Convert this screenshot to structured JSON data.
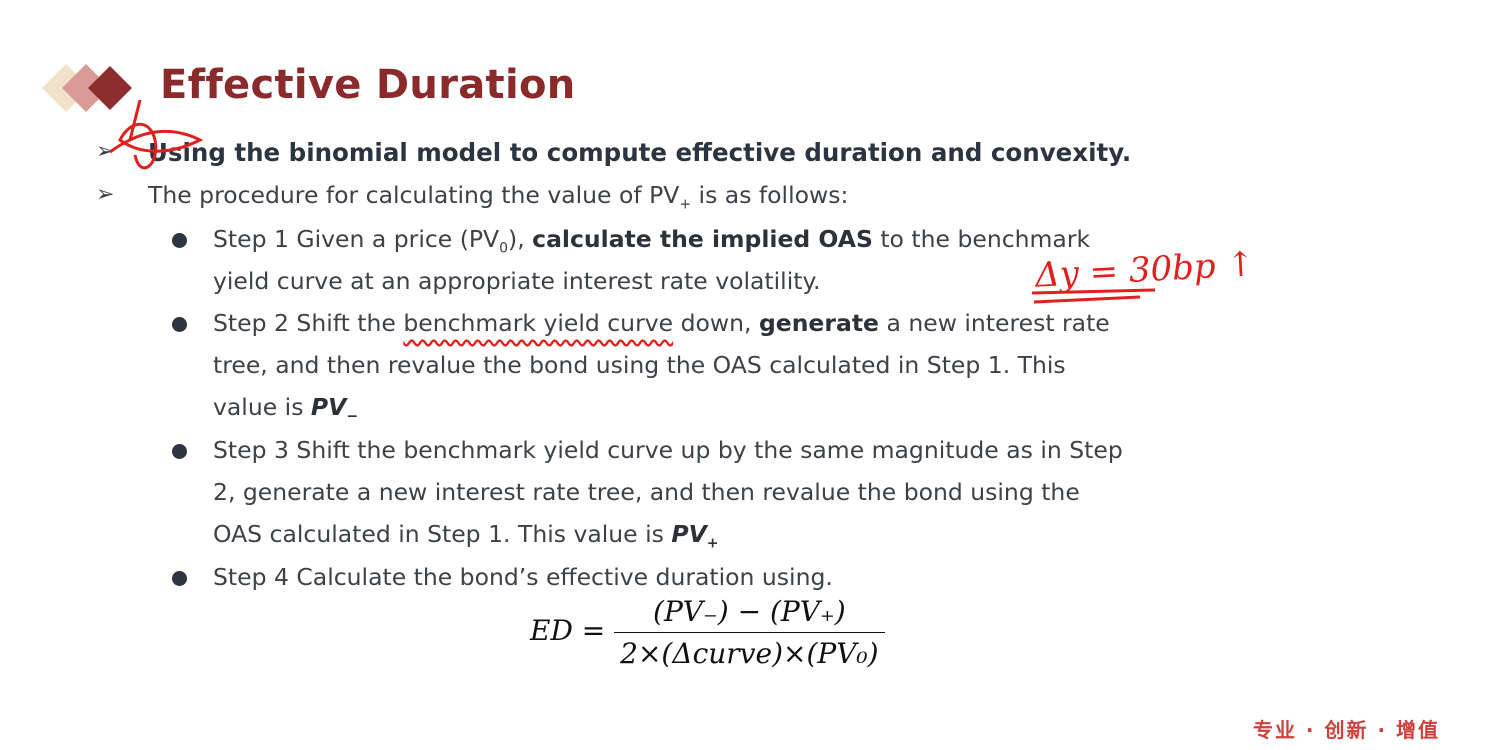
{
  "title": "Effective Duration",
  "bullets": {
    "b1": "Using the binomial model to compute effective duration and convexity.",
    "b2_pre": "The procedure for calculating the value of PV",
    "b2_sub": "+",
    "b2_post": " is as follows:"
  },
  "steps": {
    "s1_a": "Step 1 Given a price (PV",
    "s1_sub": "0",
    "s1_b": "), ",
    "s1_bold": "calculate the implied OAS",
    "s1_c": " to the benchmark",
    "s1_line2": "yield curve at an appropriate interest rate volatility.",
    "s2_a": "Step 2 Shift the ",
    "s2_underlined": "benchmark yield curve",
    "s2_b": " down, ",
    "s2_bold": "generate",
    "s2_c": " a new interest rate",
    "s2_line2": "tree, and then revalue the bond using the OAS calculated in Step 1. This",
    "s2_line3": "value is ",
    "s2_value": "PV",
    "s2_value_sub": "−",
    "s3_line1": "Step 3 Shift the benchmark yield curve up by the same magnitude as in Step",
    "s3_line2": "2, generate a new interest rate tree, and then revalue the bond using the",
    "s3_line3": "OAS calculated in Step 1. This value is ",
    "s3_value": "PV",
    "s3_value_sub": "+",
    "s4": "Step 4 Calculate the bond’s effective duration using."
  },
  "formula": {
    "lhs": "ED =",
    "numerator": "(PV₋) − (PV₊)",
    "denominator": "2×(Δcurve)×(PV₀)"
  },
  "annotation": "Δy = 30bp ↑",
  "footer": "专业 · 创新 · 增值",
  "colors": {
    "title": "#8a2a2b",
    "ink": "#e0201c",
    "footer": "#d0403a"
  }
}
